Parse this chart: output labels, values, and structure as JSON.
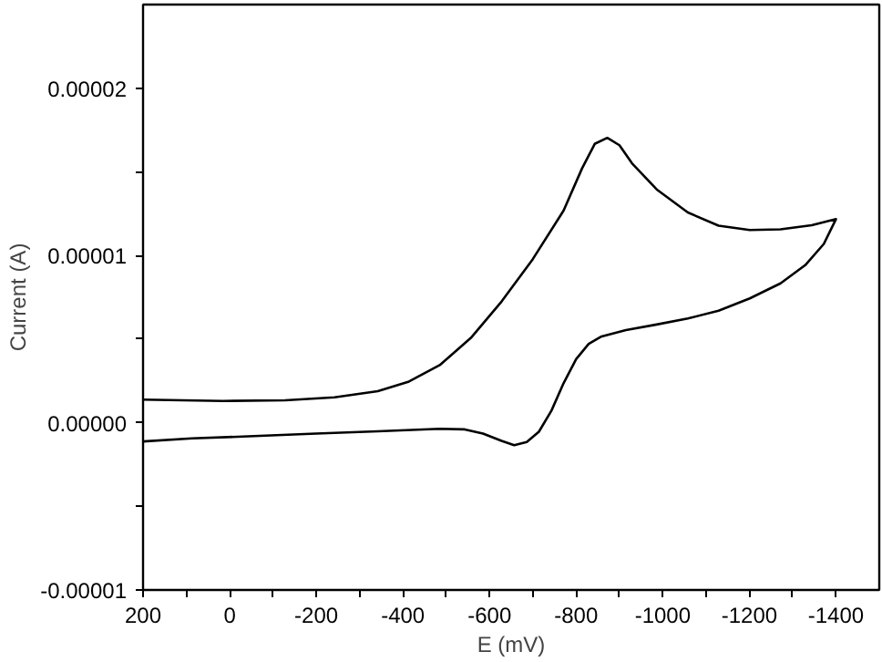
{
  "chart_data": {
    "type": "line",
    "xlabel": "E (mV)",
    "ylabel": "Current (A)",
    "xlim": [
      200,
      -1500
    ],
    "ylim": [
      -1e-05,
      2.5e-05
    ],
    "xticks": [
      200,
      {
        "value": 100,
        "label": null
      },
      0,
      {
        "value": -100,
        "label": null
      },
      -200,
      {
        "value": -300,
        "label": null
      },
      -400,
      {
        "value": -500,
        "label": null
      },
      -600,
      {
        "value": -700,
        "label": null
      },
      -800,
      {
        "value": -900,
        "label": null
      },
      -1000,
      {
        "value": -1100,
        "label": null
      },
      -1200,
      {
        "value": -1300,
        "label": null
      },
      -1400
    ],
    "yticks": [
      {
        "value": -1e-05,
        "label": "-0.00001"
      },
      {
        "value": -5e-06,
        "label": null
      },
      {
        "value": 0,
        "label": "0.00000"
      },
      {
        "value": 5e-06,
        "label": null
      },
      {
        "value": 1e-05,
        "label": "0.00001"
      },
      {
        "value": 1.5e-05,
        "label": null
      },
      {
        "value": 2e-05,
        "label": "0.00002"
      }
    ],
    "grid": false,
    "marker": "none",
    "line_style": "solid",
    "series": [
      {
        "color": "#000000",
        "x": [
          200,
          15,
          -128,
          -242,
          -342,
          -414,
          -485,
          -557,
          -628,
          -700,
          -771,
          -814,
          -843,
          -872,
          -900,
          -929,
          -986,
          -1058,
          -1129,
          -1201,
          -1272,
          -1344,
          -1400,
          -1372,
          -1329,
          -1272,
          -1201,
          -1129,
          -1058,
          -986,
          -915,
          -857,
          -829,
          -800,
          -771,
          -743,
          -714,
          -686,
          -657,
          -628,
          -585,
          -543,
          -485,
          -342,
          -199,
          -56,
          87,
          200
        ],
        "values": [
          1.38e-06,
          1.3e-06,
          1.34e-06,
          1.52e-06,
          1.88e-06,
          2.46e-06,
          3.44e-06,
          5.07e-06,
          7.25e-06,
          9.78e-06,
          1.268e-05,
          1.522e-05,
          1.667e-05,
          1.703e-05,
          1.659e-05,
          1.551e-05,
          1.395e-05,
          1.257e-05,
          1.178e-05,
          1.152e-05,
          1.156e-05,
          1.181e-05,
          1.217e-05,
          1.069e-05,
          9.42e-06,
          8.33e-06,
          7.43e-06,
          6.7e-06,
          6.23e-06,
          5.87e-06,
          5.54e-06,
          5.14e-06,
          4.71e-06,
          3.8e-06,
          2.36e-06,
          7.2e-07,
          -5.4e-07,
          -1.16e-06,
          -1.34e-06,
          -1.09e-06,
          -6.5e-07,
          -4e-07,
          -3.6e-07,
          -5.1e-07,
          -6.5e-07,
          -8e-07,
          -9.4e-07,
          -1.12e-06
        ]
      }
    ]
  }
}
